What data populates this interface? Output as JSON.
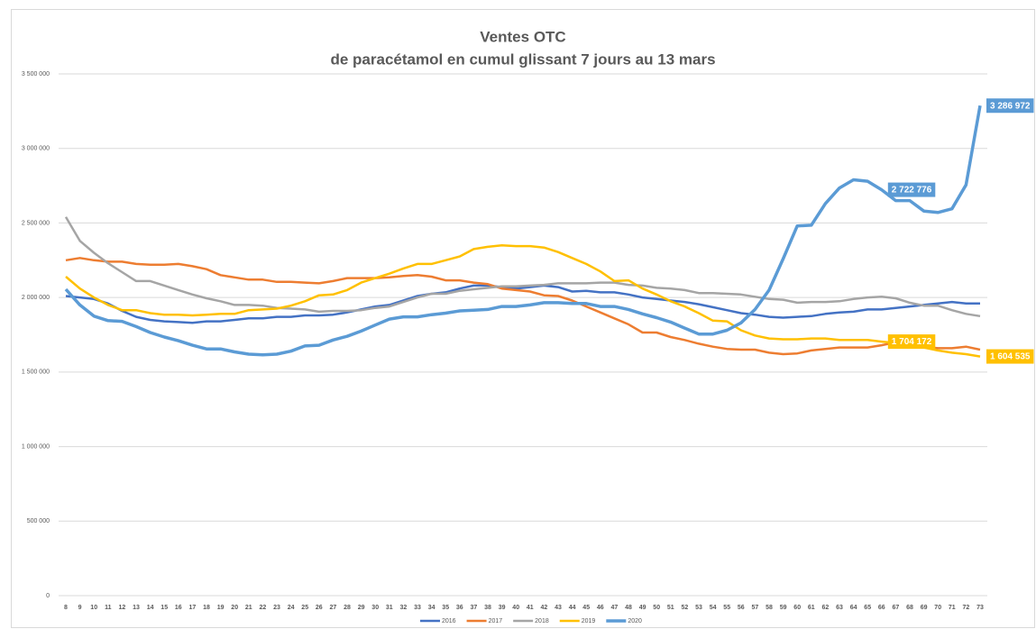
{
  "chart_data": {
    "type": "line",
    "title": "Ventes OTC",
    "subtitle": "de paracétamol en cumul glissant 7 jours au 13 mars",
    "categories": [
      8,
      9,
      10,
      11,
      12,
      13,
      14,
      15,
      16,
      17,
      18,
      19,
      20,
      21,
      22,
      23,
      24,
      25,
      26,
      27,
      28,
      29,
      30,
      31,
      32,
      33,
      34,
      35,
      36,
      37,
      38,
      39,
      40,
      41,
      42,
      43,
      44,
      45,
      46,
      47,
      48,
      49,
      50,
      51,
      52,
      53,
      54,
      55,
      56,
      57,
      58,
      59,
      60,
      61,
      62,
      63,
      64,
      65,
      66,
      67,
      68,
      69,
      70,
      71,
      72,
      73
    ],
    "ylim": [
      0,
      3500000
    ],
    "yticks": [
      0,
      {
        "value": 500000,
        "label": "500 000"
      },
      {
        "value": 1000000,
        "label": "1 000 000"
      },
      {
        "value": 1500000,
        "label": "1 500 000"
      },
      {
        "value": 2000000,
        "label": "2 000 000"
      },
      {
        "value": 2500000,
        "label": "2 500 000"
      },
      {
        "value": 3000000,
        "label": "3 000 000"
      },
      {
        "value": 3500000,
        "label": "3 500 000"
      }
    ],
    "grid": true,
    "legend": "bottom",
    "series": [
      {
        "name": "2016",
        "color": "#4472c4",
        "values": [
          2010000,
          2000000,
          1990000,
          1960000,
          1910000,
          1870000,
          1850000,
          1840000,
          1835000,
          1830000,
          1840000,
          1840000,
          1850000,
          1860000,
          1860000,
          1870000,
          1870000,
          1880000,
          1880000,
          1885000,
          1900000,
          1920000,
          1940000,
          1950000,
          1980000,
          2010000,
          2025000,
          2035000,
          2060000,
          2080000,
          2080000,
          2070000,
          2060000,
          2070000,
          2080000,
          2070000,
          2040000,
          2045000,
          2035000,
          2035000,
          2020000,
          2000000,
          1990000,
          1980000,
          1970000,
          1955000,
          1935000,
          1915000,
          1895000,
          1885000,
          1870000,
          1865000,
          1870000,
          1875000,
          1890000,
          1900000,
          1905000,
          1920000,
          1920000,
          1930000,
          1940000,
          1950000,
          1960000,
          1970000,
          1960000,
          1960000
        ]
      },
      {
        "name": "2017",
        "color": "#ed7d31",
        "values": [
          2250000,
          2265000,
          2250000,
          2240000,
          2240000,
          2225000,
          2220000,
          2220000,
          2225000,
          2210000,
          2190000,
          2150000,
          2135000,
          2120000,
          2120000,
          2105000,
          2105000,
          2100000,
          2095000,
          2110000,
          2130000,
          2130000,
          2130000,
          2135000,
          2145000,
          2150000,
          2140000,
          2115000,
          2115000,
          2100000,
          2090000,
          2060000,
          2050000,
          2040000,
          2015000,
          2010000,
          1980000,
          1940000,
          1900000,
          1860000,
          1820000,
          1765000,
          1765000,
          1735000,
          1715000,
          1690000,
          1670000,
          1655000,
          1650000,
          1650000,
          1630000,
          1620000,
          1625000,
          1645000,
          1655000,
          1665000,
          1665000,
          1665000,
          1680000,
          1700000,
          1690000,
          1670000,
          1660000,
          1660000,
          1670000,
          1650000
        ]
      },
      {
        "name": "2018",
        "color": "#a5a5a5",
        "values": [
          2540000,
          2380000,
          2300000,
          2230000,
          2170000,
          2110000,
          2110000,
          2080000,
          2050000,
          2020000,
          1995000,
          1975000,
          1950000,
          1950000,
          1945000,
          1930000,
          1925000,
          1920000,
          1905000,
          1910000,
          1910000,
          1915000,
          1930000,
          1940000,
          1970000,
          2000000,
          2025000,
          2025000,
          2045000,
          2055000,
          2065000,
          2075000,
          2075000,
          2080000,
          2085000,
          2095000,
          2095000,
          2095000,
          2100000,
          2100000,
          2085000,
          2080000,
          2065000,
          2060000,
          2050000,
          2030000,
          2030000,
          2025000,
          2020000,
          2005000,
          1990000,
          1985000,
          1965000,
          1970000,
          1970000,
          1975000,
          1990000,
          2000000,
          2005000,
          1995000,
          1965000,
          1945000,
          1945000,
          1915000,
          1890000,
          1875000
        ]
      },
      {
        "name": "2019",
        "color": "#ffc000",
        "values": [
          2140000,
          2060000,
          2000000,
          1950000,
          1915000,
          1915000,
          1895000,
          1885000,
          1885000,
          1880000,
          1885000,
          1890000,
          1890000,
          1915000,
          1920000,
          1925000,
          1945000,
          1975000,
          2015000,
          2020000,
          2050000,
          2100000,
          2130000,
          2160000,
          2195000,
          2225000,
          2225000,
          2250000,
          2275000,
          2325000,
          2340000,
          2350000,
          2345000,
          2345000,
          2335000,
          2305000,
          2265000,
          2225000,
          2175000,
          2110000,
          2115000,
          2060000,
          2020000,
          1975000,
          1940000,
          1895000,
          1845000,
          1840000,
          1780000,
          1745000,
          1725000,
          1720000,
          1720000,
          1725000,
          1725000,
          1715000,
          1715000,
          1715000,
          1704172,
          1695000,
          1685000,
          1665000,
          1645000,
          1630000,
          1620000,
          1604535
        ],
        "value_labels": [
          null,
          null,
          null,
          null,
          null,
          null,
          null,
          null,
          null,
          null,
          null,
          null,
          null,
          null,
          null,
          null,
          null,
          null,
          null,
          null,
          null,
          null,
          null,
          null,
          null,
          null,
          null,
          null,
          null,
          null,
          null,
          null,
          null,
          null,
          null,
          null,
          null,
          null,
          null,
          null,
          null,
          null,
          null,
          null,
          null,
          null,
          null,
          null,
          null,
          null,
          null,
          null,
          null,
          null,
          null,
          null,
          null,
          null,
          "1 704 172",
          null,
          null,
          null,
          null,
          null,
          null,
          "1 604 535"
        ]
      },
      {
        "name": "2020",
        "color": "#5b9bd5",
        "values": [
          2055000,
          1950000,
          1875000,
          1845000,
          1840000,
          1805000,
          1765000,
          1735000,
          1710000,
          1680000,
          1655000,
          1655000,
          1635000,
          1620000,
          1615000,
          1620000,
          1640000,
          1675000,
          1680000,
          1715000,
          1740000,
          1775000,
          1815000,
          1855000,
          1870000,
          1870000,
          1885000,
          1895000,
          1910000,
          1915000,
          1920000,
          1940000,
          1940000,
          1950000,
          1965000,
          1965000,
          1960000,
          1960000,
          1940000,
          1940000,
          1920000,
          1890000,
          1865000,
          1835000,
          1795000,
          1755000,
          1755000,
          1780000,
          1830000,
          1920000,
          2050000,
          2260000,
          2480000,
          2485000,
          2630000,
          2735000,
          2790000,
          2780000,
          2722776,
          2650000,
          2650000,
          2580000,
          2570000,
          2595000,
          2755000,
          3286972
        ],
        "value_labels": [
          null,
          null,
          null,
          null,
          null,
          null,
          null,
          null,
          null,
          null,
          null,
          null,
          null,
          null,
          null,
          null,
          null,
          null,
          null,
          null,
          null,
          null,
          null,
          null,
          null,
          null,
          null,
          null,
          null,
          null,
          null,
          null,
          null,
          null,
          null,
          null,
          null,
          null,
          null,
          null,
          null,
          null,
          null,
          null,
          null,
          null,
          null,
          null,
          null,
          null,
          null,
          null,
          null,
          null,
          null,
          null,
          null,
          null,
          "2 722 776",
          null,
          null,
          null,
          null,
          null,
          null,
          "3 286 972"
        ]
      }
    ]
  }
}
